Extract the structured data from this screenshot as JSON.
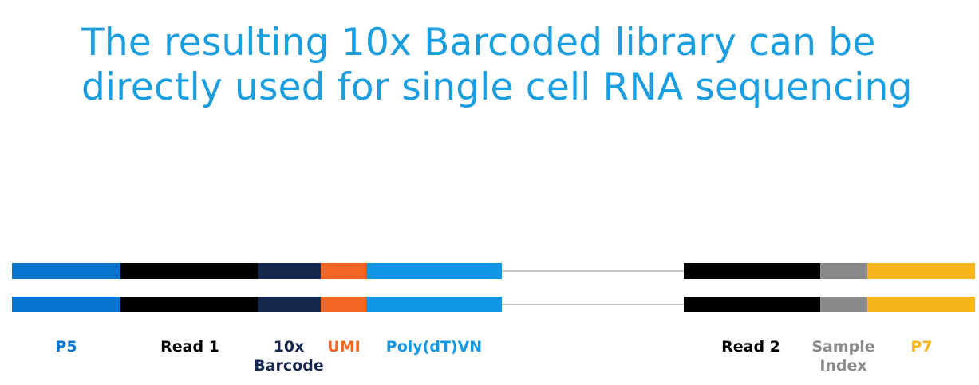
{
  "title": {
    "line1": "The resulting 10x Barcoded library can be",
    "line2": "directly used for single cell RNA sequencing"
  },
  "colors": {
    "title": "#1a9ee0",
    "p5": "#0a74d1",
    "read1": "#000000",
    "barcode": "#17284f",
    "umi": "#f26522",
    "polydt": "#1197e6",
    "linker": "#c8c8c8",
    "read2": "#000000",
    "sample_index": "#8a8a8c",
    "p7": "#f7b51c"
  },
  "segments": {
    "p5": {
      "label": "P5"
    },
    "read1": {
      "label": "Read 1"
    },
    "barcode": {
      "label_line1": "10x",
      "label_line2": "Barcode"
    },
    "umi": {
      "label": "UMI"
    },
    "polydt": {
      "label": "Poly(dT)VN"
    },
    "read2": {
      "label": "Read 2"
    },
    "sample_index": {
      "label_line1": "Sample",
      "label_line2": "Index"
    },
    "p7": {
      "label": "P7"
    }
  }
}
